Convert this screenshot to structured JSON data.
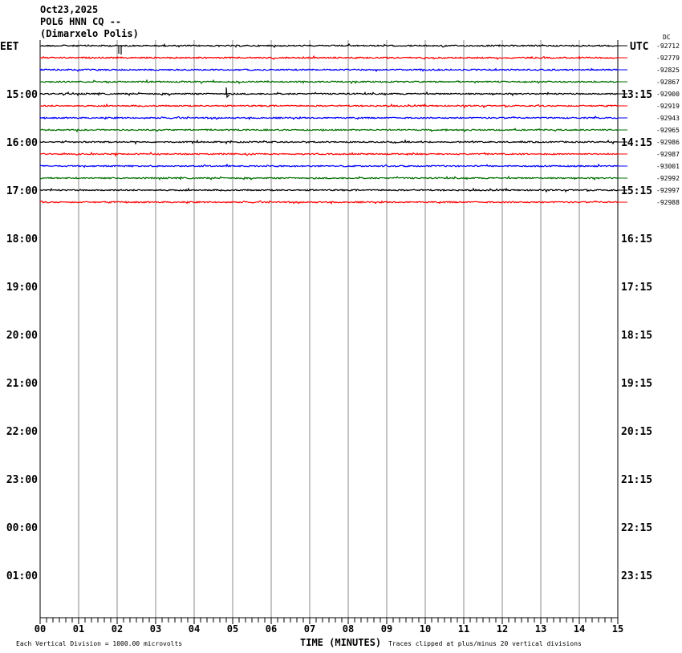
{
  "header": {
    "date": "Oct23,2025",
    "station": "POL6 HNN CQ --",
    "location": "(Dimarxelo Polis)"
  },
  "chart_data": {
    "type": "line",
    "left_timezone": "EET",
    "right_timezone": "UTC",
    "dc_label": "DC",
    "left_hour_labels": [
      "15:00",
      "16:00",
      "17:00",
      "18:00",
      "19:00",
      "20:00",
      "21:00",
      "22:00",
      "23:00",
      "00:00",
      "01:00"
    ],
    "right_hour_labels": [
      "13:15",
      "14:15",
      "15:15",
      "16:15",
      "17:15",
      "18:15",
      "19:15",
      "20:15",
      "21:15",
      "22:15",
      "23:15"
    ],
    "trace_colors": [
      "#000000",
      "#ff0000",
      "#0000ff",
      "#007000"
    ],
    "dc_offsets": [
      "-92712",
      "-92779",
      "-92825",
      "-92867",
      "-92900",
      "-92919",
      "-92943",
      "-92965",
      "-92986",
      "-92987",
      "-93001",
      "-92992",
      "-92997",
      "-92988"
    ],
    "x_ticks": [
      "00",
      "01",
      "02",
      "03",
      "04",
      "05",
      "06",
      "07",
      "08",
      "09",
      "10",
      "11",
      "12",
      "13",
      "14",
      "15"
    ],
    "xlim": [
      0,
      15
    ],
    "xlabel": "TIME (MINUTES)",
    "scale_note": "Each Vertical Division = 1000.00 microvolts",
    "clip_note": "Traces clipped at plus/minus 20 vertical divisions",
    "grid": true
  }
}
